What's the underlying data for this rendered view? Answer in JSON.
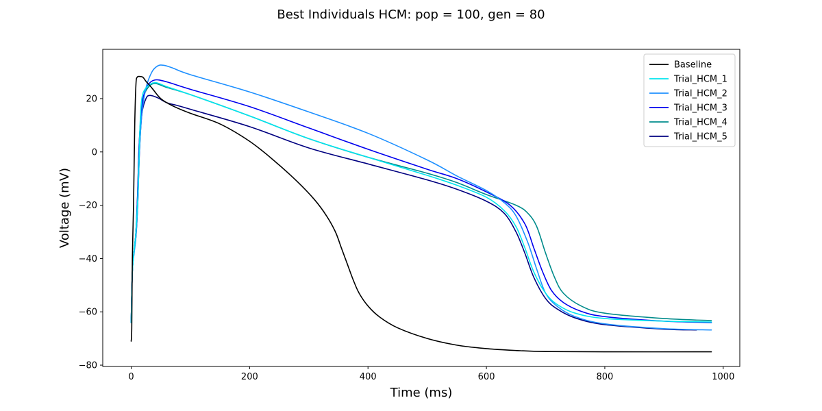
{
  "chart_data": {
    "type": "line",
    "title": "Best Individuals HCM: pop = 100, gen = 80",
    "xlabel": "Time (ms)",
    "ylabel": "Voltage (mV)",
    "xlim": [
      -48,
      1028
    ],
    "ylim": [
      -80.5,
      38.5
    ],
    "xticks": [
      0,
      200,
      400,
      600,
      800,
      1000
    ],
    "yticks": [
      -80,
      -60,
      -40,
      -20,
      0,
      20
    ],
    "legend_position": "top-right",
    "grid": false,
    "series": [
      {
        "name": "Baseline",
        "color": "#000000",
        "points": [
          [
            0,
            -71
          ],
          [
            1,
            -66
          ],
          [
            2,
            -40
          ],
          [
            4,
            -20
          ],
          [
            6,
            10
          ],
          [
            8,
            25
          ],
          [
            10,
            28
          ],
          [
            15,
            28.3
          ],
          [
            20,
            28
          ],
          [
            25,
            26.5
          ],
          [
            35,
            24
          ],
          [
            50,
            20
          ],
          [
            70,
            17.3
          ],
          [
            100,
            14.5
          ],
          [
            150,
            10.5
          ],
          [
            200,
            4
          ],
          [
            240,
            -3
          ],
          [
            280,
            -11
          ],
          [
            310,
            -18
          ],
          [
            330,
            -24
          ],
          [
            345,
            -30
          ],
          [
            355,
            -36
          ],
          [
            365,
            -42
          ],
          [
            375,
            -48
          ],
          [
            385,
            -53
          ],
          [
            400,
            -57.8
          ],
          [
            420,
            -62
          ],
          [
            450,
            -66
          ],
          [
            500,
            -70
          ],
          [
            550,
            -72.5
          ],
          [
            600,
            -73.8
          ],
          [
            650,
            -74.5
          ],
          [
            700,
            -74.9
          ],
          [
            800,
            -75
          ],
          [
            980,
            -75
          ]
        ]
      },
      {
        "name": "Trial_HCM_1",
        "color": "#00e5ee",
        "points": [
          [
            0,
            -64
          ],
          [
            2,
            -45
          ],
          [
            5,
            -37
          ],
          [
            8,
            -30
          ],
          [
            11,
            -18
          ],
          [
            13,
            -5
          ],
          [
            15,
            10
          ],
          [
            18,
            20
          ],
          [
            25,
            24
          ],
          [
            40,
            26
          ],
          [
            60,
            24.5
          ],
          [
            100,
            21.5
          ],
          [
            200,
            13.5
          ],
          [
            300,
            5
          ],
          [
            400,
            -2
          ],
          [
            500,
            -8.8
          ],
          [
            550,
            -12.5
          ],
          [
            600,
            -17
          ],
          [
            630,
            -22
          ],
          [
            650,
            -28
          ],
          [
            665,
            -36
          ],
          [
            680,
            -45
          ],
          [
            700,
            -53
          ],
          [
            720,
            -57.3
          ],
          [
            750,
            -60.5
          ],
          [
            800,
            -62.5
          ],
          [
            900,
            -63.5
          ],
          [
            980,
            -63.8
          ]
        ]
      },
      {
        "name": "Trial_HCM_2",
        "color": "#1e90ff",
        "points": [
          [
            0,
            -64
          ],
          [
            2,
            -45
          ],
          [
            5,
            -38
          ],
          [
            8,
            -32
          ],
          [
            11,
            -20
          ],
          [
            14,
            0
          ],
          [
            18,
            14
          ],
          [
            25,
            24
          ],
          [
            35,
            30
          ],
          [
            45,
            32.3
          ],
          [
            55,
            32.5
          ],
          [
            70,
            31.5
          ],
          [
            100,
            29
          ],
          [
            200,
            22.5
          ],
          [
            300,
            15
          ],
          [
            400,
            7
          ],
          [
            500,
            -3
          ],
          [
            550,
            -9
          ],
          [
            600,
            -14.5
          ],
          [
            630,
            -19
          ],
          [
            650,
            -24
          ],
          [
            670,
            -34
          ],
          [
            685,
            -44
          ],
          [
            700,
            -53
          ],
          [
            720,
            -58
          ],
          [
            750,
            -61.8
          ],
          [
            800,
            -64.5
          ],
          [
            900,
            -66.3
          ],
          [
            980,
            -66.8
          ]
        ]
      },
      {
        "name": "Trial_HCM_3",
        "color": "#0000ee",
        "points": [
          [
            0,
            -64
          ],
          [
            2,
            -45
          ],
          [
            5,
            -37
          ],
          [
            8,
            -30
          ],
          [
            11,
            -15
          ],
          [
            13,
            0
          ],
          [
            16,
            12
          ],
          [
            20,
            20
          ],
          [
            28,
            25
          ],
          [
            40,
            27
          ],
          [
            60,
            26.3
          ],
          [
            100,
            23.5
          ],
          [
            200,
            17
          ],
          [
            300,
            9
          ],
          [
            400,
            1
          ],
          [
            500,
            -6.5
          ],
          [
            550,
            -10
          ],
          [
            600,
            -15
          ],
          [
            640,
            -20
          ],
          [
            665,
            -27
          ],
          [
            680,
            -36
          ],
          [
            695,
            -45
          ],
          [
            710,
            -52
          ],
          [
            730,
            -56.5
          ],
          [
            760,
            -59.8
          ],
          [
            800,
            -61.8
          ],
          [
            900,
            -63.5
          ],
          [
            980,
            -64
          ]
        ]
      },
      {
        "name": "Trial_HCM_4",
        "color": "#008b8b",
        "points": [
          [
            0,
            -64
          ],
          [
            2,
            -45
          ],
          [
            5,
            -37
          ],
          [
            8,
            -30
          ],
          [
            11,
            -15
          ],
          [
            13,
            0
          ],
          [
            16,
            12
          ],
          [
            20,
            20
          ],
          [
            28,
            24
          ],
          [
            40,
            25.7
          ],
          [
            60,
            24.2
          ],
          [
            100,
            21.5
          ],
          [
            200,
            13.5
          ],
          [
            300,
            5
          ],
          [
            400,
            -2
          ],
          [
            500,
            -8
          ],
          [
            550,
            -11.5
          ],
          [
            600,
            -16
          ],
          [
            650,
            -20
          ],
          [
            670,
            -23
          ],
          [
            685,
            -28
          ],
          [
            700,
            -38
          ],
          [
            715,
            -47
          ],
          [
            730,
            -53
          ],
          [
            760,
            -57.8
          ],
          [
            800,
            -60.5
          ],
          [
            900,
            -62.5
          ],
          [
            980,
            -63.3
          ]
        ]
      },
      {
        "name": "Trial_HCM_5",
        "color": "#000080",
        "points": [
          [
            0,
            -64
          ],
          [
            2,
            -45
          ],
          [
            5,
            -37
          ],
          [
            8,
            -32
          ],
          [
            11,
            -20
          ],
          [
            14,
            0
          ],
          [
            18,
            14
          ],
          [
            25,
            20
          ],
          [
            32,
            21.2
          ],
          [
            45,
            20.3
          ],
          [
            60,
            18.5
          ],
          [
            80,
            17.3
          ],
          [
            100,
            16
          ],
          [
            200,
            9.5
          ],
          [
            300,
            1.5
          ],
          [
            400,
            -4.5
          ],
          [
            500,
            -10.5
          ],
          [
            550,
            -14
          ],
          [
            600,
            -18.5
          ],
          [
            630,
            -23
          ],
          [
            650,
            -30
          ],
          [
            665,
            -38
          ],
          [
            680,
            -47
          ],
          [
            700,
            -55
          ],
          [
            720,
            -59
          ],
          [
            750,
            -62.3
          ],
          [
            800,
            -64.8
          ],
          [
            900,
            -66.5
          ],
          [
            955,
            -66.8
          ]
        ]
      }
    ]
  }
}
